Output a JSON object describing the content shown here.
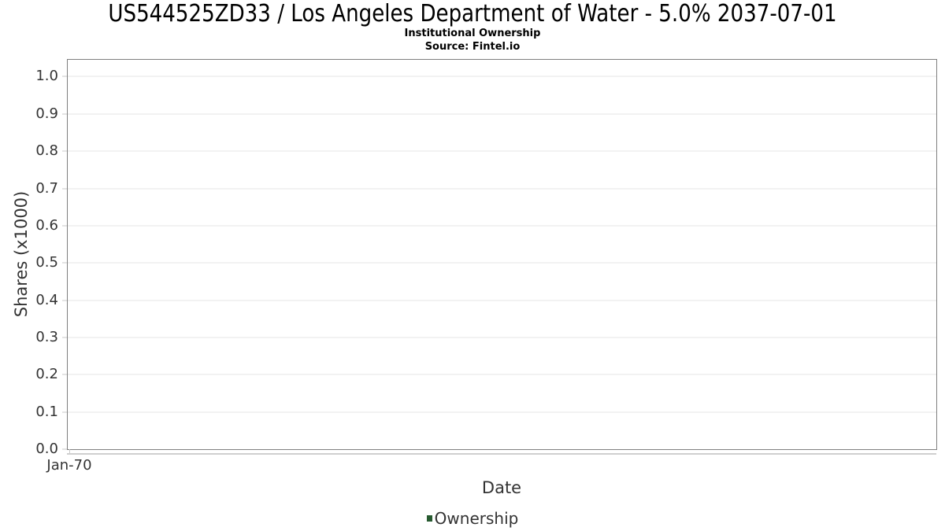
{
  "chart_data": {
    "type": "line",
    "title": "US544525ZD33 / Los Angeles Department of Water - 5.0% 2037-07-01",
    "subtitle": "Institutional Ownership",
    "source": "Source: Fintel.io",
    "xlabel": "Date",
    "ylabel": "Shares (x1000)",
    "x_ticks": [
      "Jan-70"
    ],
    "y_ticks": [
      0.0,
      0.1,
      0.2,
      0.3,
      0.4,
      0.5,
      0.6,
      0.7,
      0.8,
      0.9,
      1.0
    ],
    "y_tick_labels": [
      "0.0",
      "0.1",
      "0.2",
      "0.3",
      "0.4",
      "0.5",
      "0.6",
      "0.7",
      "0.8",
      "0.9",
      "1.0"
    ],
    "ylim": [
      0,
      1.045
    ],
    "grid": true,
    "legend_position": "bottom",
    "legend": [
      {
        "name": "Ownership",
        "color": "#275a30"
      }
    ],
    "series": [
      {
        "name": "Ownership",
        "x": [],
        "y": []
      }
    ],
    "colors": {
      "plot_border": "#7f7f7f",
      "gridline": "#e6e6e6",
      "tick": "#c9c9c9",
      "text": "#333333",
      "title_text": "#000000"
    }
  }
}
